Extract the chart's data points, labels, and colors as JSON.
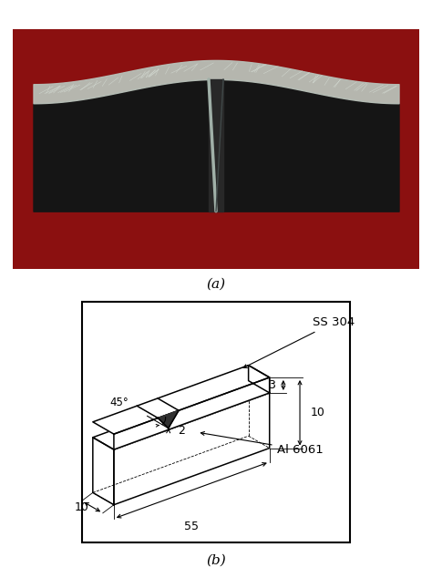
{
  "fig_width": 4.74,
  "fig_height": 6.34,
  "dpi": 100,
  "label_a": "(a)",
  "label_b": "(b)",
  "ss304_label": "SS 304",
  "al6061_label": "Al 6061",
  "dim_55": "55",
  "dim_10_bot": "10",
  "dim_10_right": "10",
  "dim_3": "3",
  "dim_2": "2",
  "dim_45": "45°",
  "photo_bg": "#8B1010",
  "specimen_gray": "#B8C0B8",
  "specimen_dark": "#151515",
  "specimen_mid": "#606060",
  "lw_draw": 1.1,
  "lw_dim": 0.8
}
